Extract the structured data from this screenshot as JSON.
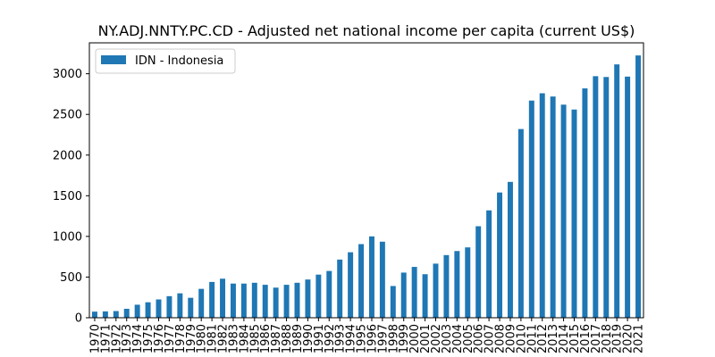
{
  "chart_data": {
    "type": "bar",
    "title": "NY.ADJ.NNTY.PC.CD - Adjusted net national income per capita (current US$)",
    "xlabel": "",
    "ylabel": "",
    "ylim": [
      0,
      3380
    ],
    "yticks": [
      0,
      500,
      1000,
      1500,
      2000,
      2500,
      3000
    ],
    "legend": "top-left",
    "bar_color": "#1f77b4",
    "categories": [
      "1970",
      "1971",
      "1972",
      "1973",
      "1974",
      "1975",
      "1976",
      "1977",
      "1978",
      "1979",
      "1980",
      "1981",
      "1982",
      "1983",
      "1984",
      "1985",
      "1986",
      "1987",
      "1988",
      "1989",
      "1990",
      "1991",
      "1992",
      "1993",
      "1994",
      "1995",
      "1996",
      "1997",
      "1998",
      "1999",
      "2000",
      "2001",
      "2002",
      "2003",
      "2004",
      "2005",
      "2006",
      "2007",
      "2008",
      "2009",
      "2010",
      "2011",
      "2012",
      "2013",
      "2014",
      "2015",
      "2016",
      "2017",
      "2018",
      "2019",
      "2020",
      "2021"
    ],
    "series": [
      {
        "name": "IDN - Indonesia",
        "values": [
          75,
          78,
          82,
          110,
          160,
          190,
          225,
          265,
          300,
          245,
          355,
          440,
          480,
          420,
          420,
          430,
          405,
          370,
          405,
          430,
          470,
          530,
          575,
          715,
          805,
          905,
          1000,
          935,
          390,
          555,
          625,
          535,
          665,
          770,
          820,
          865,
          1125,
          1320,
          1540,
          1670,
          2320,
          2670,
          2760,
          2720,
          2620,
          2560,
          2820,
          2970,
          2960,
          3115,
          2965,
          3225
        ]
      }
    ]
  }
}
